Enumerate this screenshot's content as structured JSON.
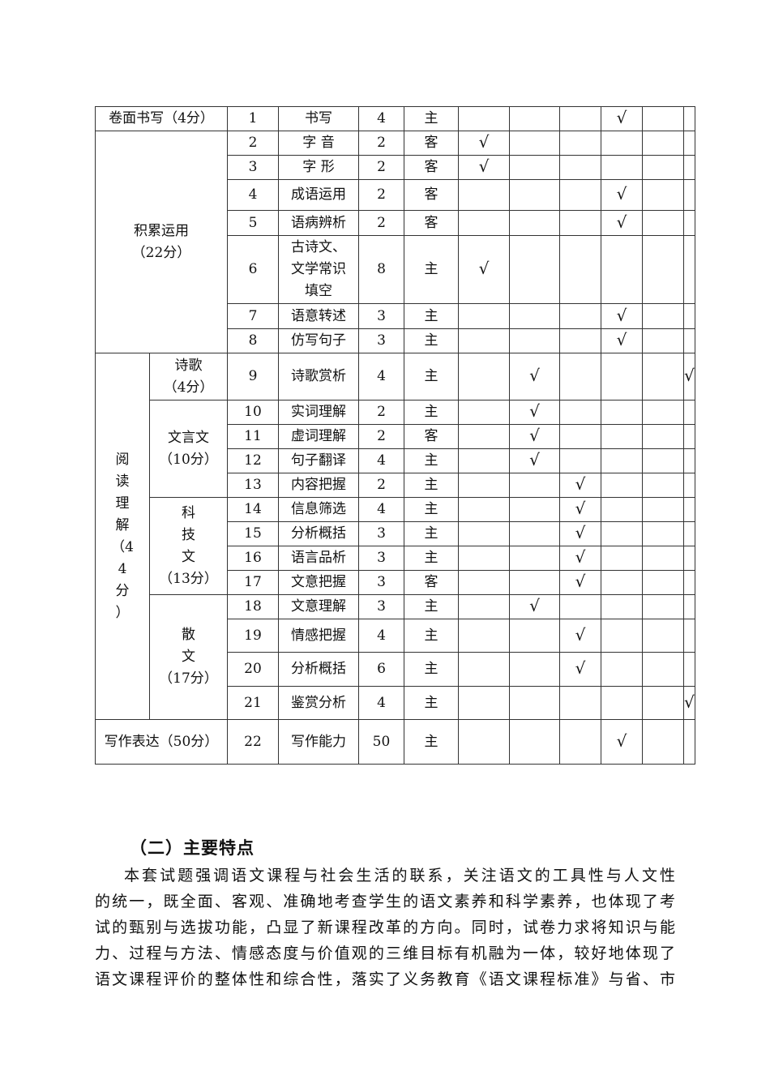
{
  "table": {
    "rows": [
      {
        "group": "卷面书写（4分）",
        "sub": null,
        "no": "1",
        "item": "书写",
        "score": "4",
        "type": "主",
        "checks": [
          3
        ]
      },
      {
        "group": "积累运用\n（22分）",
        "sub": null,
        "no": "2",
        "item": "字 音",
        "score": "2",
        "type": "客",
        "checks": [
          0
        ]
      },
      {
        "no": "3",
        "item": "字 形",
        "score": "2",
        "type": "客",
        "checks": [
          0
        ]
      },
      {
        "no": "4",
        "item": "成语运用",
        "score": "2",
        "type": "客",
        "checks": [
          3
        ]
      },
      {
        "no": "5",
        "item": "语病辨析",
        "score": "2",
        "type": "客",
        "checks": [
          3
        ]
      },
      {
        "no": "6",
        "item": "古诗文、\n文学常识\n填空",
        "score": "8",
        "type": "主",
        "checks": [
          0
        ]
      },
      {
        "no": "7",
        "item": "语意转述",
        "score": "3",
        "type": "主",
        "checks": [
          3
        ]
      },
      {
        "no": "8",
        "item": "仿写句子",
        "score": "3",
        "type": "主",
        "checks": [
          3
        ]
      },
      {
        "group": "阅\n读\n理\n解\n（4\n4\n分\n）",
        "sub": "诗歌\n（4分）",
        "no": "9",
        "item": "诗歌赏析",
        "score": "4",
        "type": "主",
        "checks": [
          1,
          5
        ]
      },
      {
        "sub": "文言文\n（10分）",
        "no": "10",
        "item": "实词理解",
        "score": "2",
        "type": "主",
        "checks": [
          1
        ]
      },
      {
        "no": "11",
        "item": "虚词理解",
        "score": "2",
        "type": "客",
        "checks": [
          1
        ]
      },
      {
        "no": "12",
        "item": "句子翻译",
        "score": "4",
        "type": "主",
        "checks": [
          1
        ]
      },
      {
        "no": "13",
        "item": "内容把握",
        "score": "2",
        "type": "主",
        "checks": [
          2
        ]
      },
      {
        "sub": "科\n技\n文\n（13分）",
        "no": "14",
        "item": "信息筛选",
        "score": "4",
        "type": "主",
        "checks": [
          2
        ]
      },
      {
        "no": "15",
        "item": "分析概括",
        "score": "3",
        "type": "主",
        "checks": [
          2
        ]
      },
      {
        "no": "16",
        "item": "语言品析",
        "score": "3",
        "type": "主",
        "checks": [
          2
        ]
      },
      {
        "no": "17",
        "item": "文意把握",
        "score": "3",
        "type": "客",
        "checks": [
          2
        ]
      },
      {
        "sub": "散\n文\n（17分）",
        "no": "18",
        "item": "文意理解",
        "score": "3",
        "type": "主",
        "checks": [
          1
        ]
      },
      {
        "no": "19",
        "item": "情感把握",
        "score": "4",
        "type": "主",
        "checks": [
          2
        ]
      },
      {
        "no": "20",
        "item": "分析概括",
        "score": "6",
        "type": "主",
        "checks": [
          2
        ]
      },
      {
        "no": "21",
        "item": "鉴赏分析",
        "score": "4",
        "type": "主",
        "checks": [
          5
        ]
      },
      {
        "group": "写作表达（50分）",
        "sub": null,
        "no": "22",
        "item": "写作能力",
        "score": "50",
        "type": "主",
        "checks": [
          3
        ]
      }
    ],
    "check_mark": "√"
  },
  "section": {
    "heading": "（二）主要特点",
    "lines": [
      "本套试题强调语文课程与社会生活的联系，关注语文的工具性与人文性",
      "的统一，既全面、客观、准确地考查学生的语文素养和科学素养，也体现了考",
      "试的甄别与选拔功能，凸显了新课程改革的方向。同时，试卷力求将知识与能",
      "力、过程与方法、情感态度与价值观的三维目标有机融为一体，较好地体现了",
      "语文课程评价的整体性和综合性，落实了义务教育《语文课程标准》与省、市"
    ]
  }
}
